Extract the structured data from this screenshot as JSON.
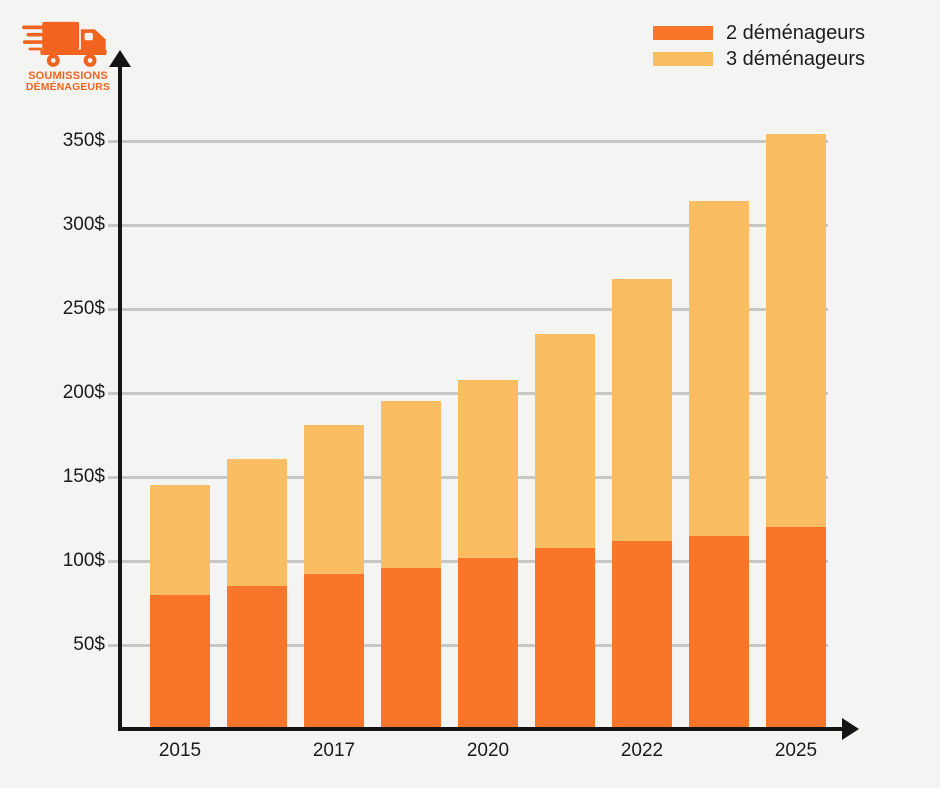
{
  "page": {
    "background": "#f4f4f2"
  },
  "logo": {
    "line1": "SOUMISSIONS",
    "line2": "DÉMÉNAGEURS",
    "color": "#f1641f"
  },
  "legend": {
    "items": [
      {
        "label": "2 déménageurs",
        "color": "#f9752a"
      },
      {
        "label": "3 déménageurs",
        "color": "#fbbd62"
      }
    ]
  },
  "chart_data": {
    "type": "bar",
    "stacked": true,
    "title": "",
    "xlabel": "",
    "ylabel": "",
    "currency": "$",
    "categories": [
      "2015",
      "",
      "2017",
      "",
      "2020",
      "",
      "2022",
      "",
      "2025"
    ],
    "x_labels": [
      {
        "index": 0,
        "label": "2015"
      },
      {
        "index": 2,
        "label": "2017"
      },
      {
        "index": 4,
        "label": "2020"
      },
      {
        "index": 6,
        "label": "2022"
      },
      {
        "index": 8,
        "label": "2025"
      }
    ],
    "series": [
      {
        "name": "2 déménageurs",
        "color": "#f9752a",
        "values": [
          80,
          85,
          92,
          96,
          102,
          108,
          112,
          115,
          120
        ]
      },
      {
        "name": "3 déménageurs",
        "color": "#fbbd62",
        "values": [
          65,
          76,
          89,
          99,
          106,
          127,
          156,
          199,
          234
        ]
      }
    ],
    "stack_totals": [
      145,
      161,
      181,
      195,
      208,
      235,
      268,
      314,
      354
    ],
    "y_ticks": [
      {
        "value": 50,
        "label": "50$"
      },
      {
        "value": 100,
        "label": "100$"
      },
      {
        "value": 150,
        "label": "150$"
      },
      {
        "value": 200,
        "label": "200$"
      },
      {
        "value": 250,
        "label": "250$"
      },
      {
        "value": 300,
        "label": "300$"
      },
      {
        "value": 350,
        "label": "350$"
      }
    ],
    "ylim": [
      0,
      380
    ],
    "grid": true,
    "legend_position": "top-right",
    "grid_color": "#c7c7c5",
    "axis_color": "#141414",
    "background_color": "#f4f4f2"
  }
}
